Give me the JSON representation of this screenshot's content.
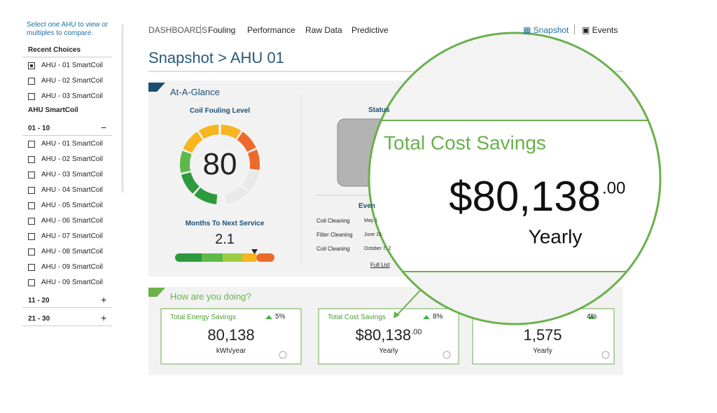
{
  "sidebar": {
    "hint": "Select one AHU to view or multiples to compare.",
    "recent_title": "Recent Choices",
    "recent": [
      {
        "label": "AHU - 01 SmartCoil",
        "checked": true
      },
      {
        "label": "AHU - 02 SmartCoil",
        "checked": false
      },
      {
        "label": "AHU - 03 SmartCoil",
        "checked": false
      }
    ],
    "group_title": "AHU SmartCoil",
    "groups": [
      {
        "label": "01 - 10",
        "toggle": "−",
        "items": [
          "AHU - 01 SmartCoil",
          "AHU - 02 SmartCoil",
          "AHU - 03 SmartCoil",
          "AHU - 04 SmartCoil",
          "AHU - 05 SmartCoil",
          "AHU - 06 SmartCoil",
          "AHU - 07 SmartCoil",
          "AHU - 08 SmartCoil",
          "AHU - 09 SmartCoil",
          "AHU - 09 SmartCoil"
        ]
      },
      {
        "label": "11 - 20",
        "toggle": "+",
        "items": []
      },
      {
        "label": "21 - 30",
        "toggle": "+",
        "items": []
      }
    ]
  },
  "nav": {
    "items": [
      "DASHBOARDS",
      "Fouling",
      "Performance",
      "Raw Data",
      "Predictive"
    ],
    "right": [
      "Snapshot",
      "Events"
    ]
  },
  "title": "Snapshot > AHU 01",
  "glance": {
    "title": "At-A-Glance",
    "gauge_title": "Coil Fouling Level",
    "gauge_value": "80",
    "months_title": "Months To Next Service",
    "months_value": "2.1",
    "status_title": "Status",
    "events_title": "Even",
    "events": [
      {
        "name": "Coil Cleaning",
        "date": "May 1"
      },
      {
        "name": "Filter Cleaning",
        "date": "June 15"
      },
      {
        "name": "Coil Cleaning",
        "date": "October 7, 2"
      }
    ],
    "full_list": "Full List"
  },
  "doing": {
    "title": "How are you doing?",
    "cards": [
      {
        "title": "Total Energy Savings",
        "change": "5%",
        "value": "80,138",
        "unit": "kWh/year"
      },
      {
        "title": "Total Cost Savings",
        "change": "8%",
        "value": "$80,138",
        "cents": ".00",
        "unit": "Yearly"
      },
      {
        "change": "4%",
        "value": "1,575",
        "unit": "Yearly"
      }
    ]
  },
  "lens": {
    "title": "Total Cost Savings",
    "value": "$80,138",
    "cents": ".00",
    "unit": "Yearly"
  }
}
